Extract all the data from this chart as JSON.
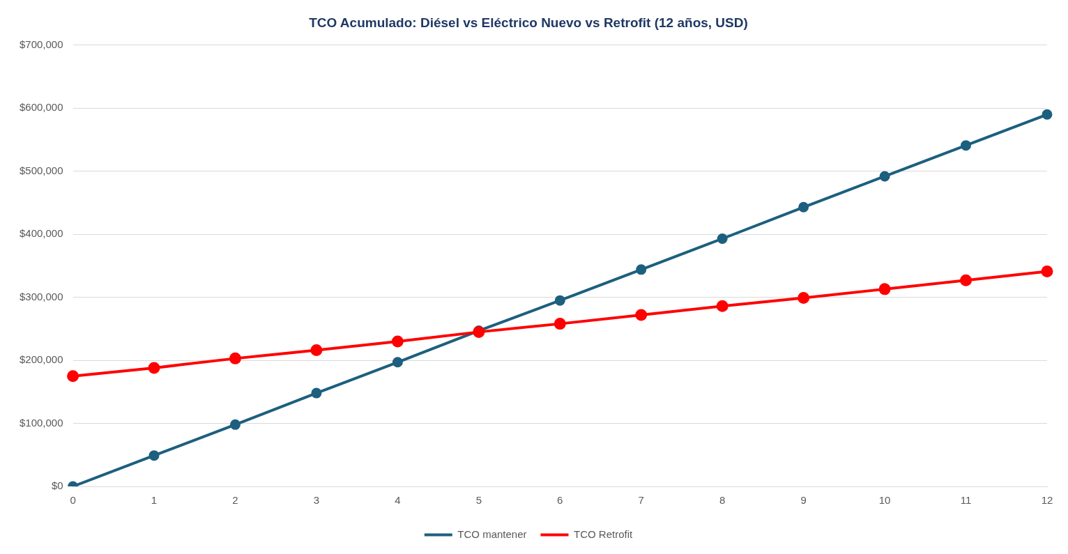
{
  "chart_data": {
    "type": "line",
    "title": "TCO Acumulado: Diésel vs Eléctrico Nuevo vs Retrofit (12 años, USD)",
    "categories": [
      "0",
      "1",
      "2",
      "3",
      "4",
      "5",
      "6",
      "7",
      "8",
      "9",
      "10",
      "11",
      "12"
    ],
    "series": [
      {
        "name": "TCO mantener",
        "color": "#1d5f7f",
        "values": [
          0,
          49000,
          98000,
          148000,
          197000,
          247000,
          295000,
          344000,
          393000,
          443000,
          492000,
          541000,
          590000
        ]
      },
      {
        "name": "TCO Retrofit",
        "color": "#ff0000",
        "values": [
          175000,
          188000,
          203000,
          216000,
          230000,
          245000,
          258000,
          272000,
          286000,
          299000,
          313000,
          327000,
          341000
        ]
      }
    ],
    "ylim": [
      0,
      700000
    ],
    "yticks": [
      {
        "value": 0,
        "label": "$0"
      },
      {
        "value": 100000,
        "label": "$100,000"
      },
      {
        "value": 200000,
        "label": "$200,000"
      },
      {
        "value": 300000,
        "label": "$300,000"
      },
      {
        "value": 400000,
        "label": "$400,000"
      },
      {
        "value": 500000,
        "label": "$500,000"
      },
      {
        "value": 600000,
        "label": "$600,000"
      },
      {
        "value": 700000,
        "label": "$700,000"
      }
    ],
    "grid": "y",
    "legend": "bottom",
    "marker": "circle",
    "line_style": "solid"
  }
}
